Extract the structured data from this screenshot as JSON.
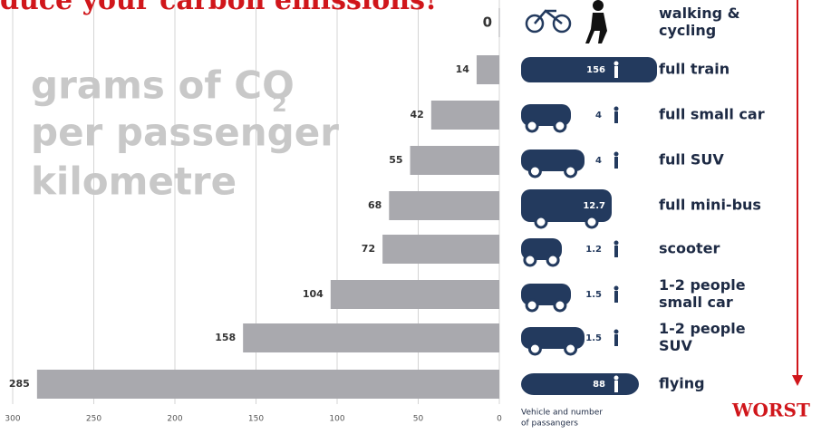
{
  "chart_data": {
    "type": "bar",
    "orientation": "horizontal-left",
    "title": "duce your carbon emissions!",
    "axis_label_lines": [
      "grams of CO",
      "2",
      "per passenger",
      "kilometre"
    ],
    "categories": [
      [
        "walking &",
        "cycling"
      ],
      [
        "full train"
      ],
      [
        "full small car"
      ],
      [
        "full SUV"
      ],
      [
        "full mini-bus"
      ],
      [
        "scooter"
      ],
      [
        "1-2 people",
        "small car"
      ],
      [
        "1-2 people",
        "SUV"
      ],
      [
        "flying"
      ]
    ],
    "values": [
      0,
      14,
      42,
      55,
      68,
      72,
      104,
      158,
      285
    ],
    "passengers": [
      null,
      156,
      4,
      4,
      12.7,
      1.2,
      1.5,
      1.5,
      88
    ],
    "passengers_caption": [
      "Vehicle and number",
      "of passangers"
    ],
    "worst_label": "WORST",
    "color": "#a9a9ae",
    "icon_color": "#233a5e",
    "xlim": [
      300,
      0
    ],
    "xticks": [
      300,
      250,
      200,
      150,
      100,
      50,
      0
    ],
    "grid": true
  }
}
